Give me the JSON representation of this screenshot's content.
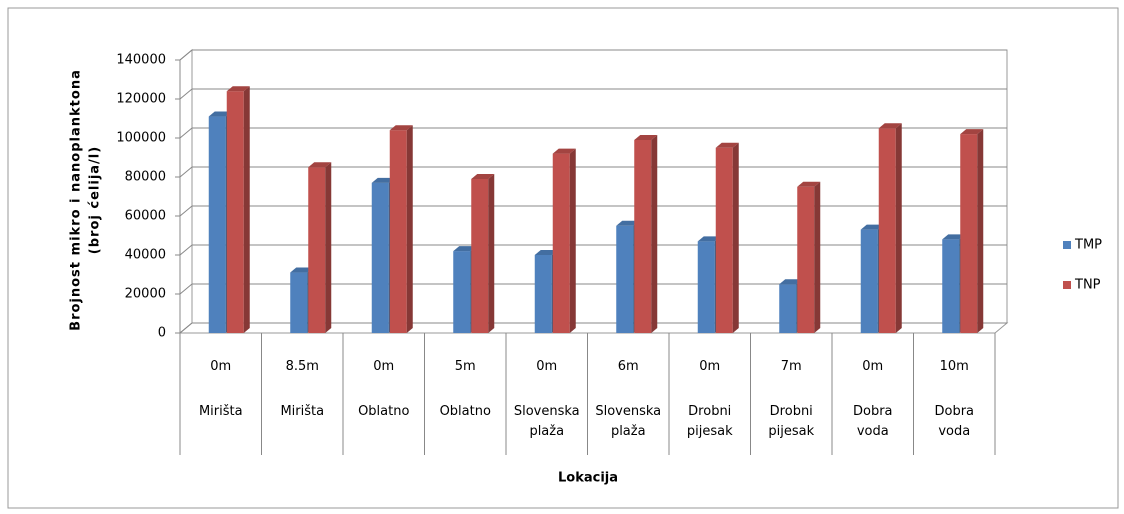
{
  "chart_data": {
    "type": "bar3d",
    "y_axis_label": [
      "Brojnost mikro i nanoplanktona",
      "(broj ćelija/l)"
    ],
    "x_axis_label": "Lokacija",
    "categories": [
      "0m",
      "8.5m",
      "0m",
      "5m",
      "0m",
      "6m",
      "0m",
      "7m",
      "0m",
      "10m"
    ],
    "category_groups": [
      "Mirišta",
      "Mirišta",
      "Oblatno",
      "Oblatno",
      "Slovenska plaža",
      "Slovenska plaža",
      "Drobni pijesak",
      "Drobni pijesak",
      "Dobra voda",
      "Dobra voda"
    ],
    "series": [
      {
        "name": "TMP",
        "color": "#4f81bd",
        "values": [
          111000,
          31000,
          77000,
          42000,
          40000,
          55000,
          47000,
          25000,
          53000,
          48000
        ]
      },
      {
        "name": "TNP",
        "color": "#c0504d",
        "values": [
          124000,
          85000,
          104000,
          79000,
          92000,
          99000,
          95000,
          75000,
          105000,
          102000
        ]
      }
    ],
    "ylim": [
      0,
      140000
    ],
    "yticks": [
      0,
      20000,
      40000,
      60000,
      80000,
      100000,
      120000,
      140000
    ],
    "grid": true,
    "legend": "right"
  }
}
